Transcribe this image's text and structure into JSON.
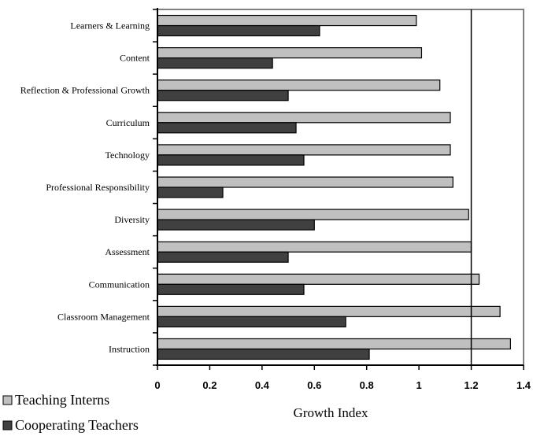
{
  "chart_data": {
    "type": "bar",
    "orientation": "horizontal",
    "categories": [
      "Learners & Learning",
      "Content",
      "Reflection & Professional Growth",
      "Curriculum",
      "Technology",
      "Professional Responsibility",
      "Diversity",
      "Assessment",
      "Communication",
      "Classroom Management",
      "Instruction"
    ],
    "series": [
      {
        "name": "Teaching Interns",
        "color": "#c0c0c0",
        "values": [
          0.99,
          1.01,
          1.08,
          1.12,
          1.12,
          1.13,
          1.19,
          1.2,
          1.23,
          1.31,
          1.35
        ]
      },
      {
        "name": "Cooperating Teachers",
        "color": "#404040",
        "values": [
          0.62,
          0.44,
          0.5,
          0.53,
          0.56,
          0.25,
          0.6,
          0.5,
          0.56,
          0.72,
          0.81
        ]
      }
    ],
    "xlabel": "Growth Index",
    "ylabel": "",
    "xlim": [
      0,
      1.4
    ],
    "xticks": [
      "0",
      "0.2",
      "0.4",
      "0.6",
      "0.8",
      "1",
      "1.2",
      "1.4"
    ],
    "gridlines_x": [
      1.2
    ],
    "legend": "bottom-left"
  }
}
